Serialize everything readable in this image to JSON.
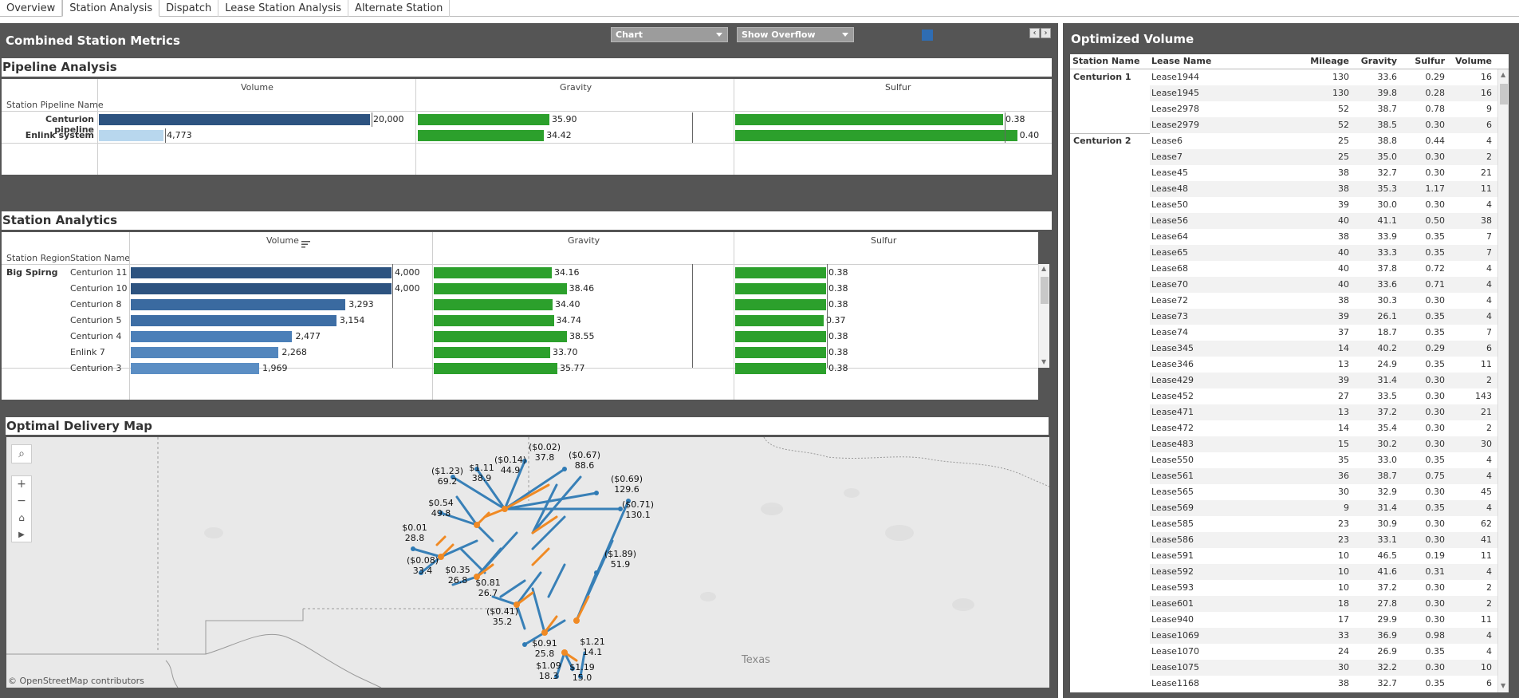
{
  "tabs": [
    {
      "label": "Overview"
    },
    {
      "label": "Station Analysis"
    },
    {
      "label": "Dispatch"
    },
    {
      "label": "Lease Station Analysis"
    },
    {
      "label": "Alternate Station"
    }
  ],
  "combined": {
    "title": "Combined Station Metrics",
    "dropdown1": "Chart",
    "dropdown2": "Show Overflow",
    "legend_color": "#2f6db3"
  },
  "pipeline": {
    "title": "Pipeline Analysis",
    "col_volume": "Volume",
    "col_gravity": "Gravity",
    "col_sulfur": "Sulfur",
    "row_header": "Station Pipeline Name",
    "rows": [
      {
        "name": "Centurion pipeline",
        "volume": 20000,
        "volume_label": "20,000",
        "gravity": 35.9,
        "gravity_label": "35.90",
        "sulfur": 0.38,
        "sulfur_label": "0.38",
        "color": "#2d5380"
      },
      {
        "name": "Enlink system",
        "volume": 4773,
        "volume_label": "4,773",
        "gravity": 34.42,
        "gravity_label": "34.42",
        "sulfur": 0.4,
        "sulfur_label": "0.40",
        "color": "#b8d7ee"
      }
    ]
  },
  "analytics": {
    "title": "Station Analytics",
    "col_volume": "Volume",
    "col_gravity": "Gravity",
    "col_sulfur": "Sulfur",
    "hdr_region": "Station Region",
    "hdr_name": "Station Name",
    "region": "Big Spirng",
    "rows": [
      {
        "name": "Centurion 11",
        "volume": 4000,
        "volume_label": "4,000",
        "gravity": 34.16,
        "gravity_label": "34.16",
        "sulfur": 0.38,
        "sulfur_label": "0.38",
        "color": "#2d5380"
      },
      {
        "name": "Centurion 10",
        "volume": 4000,
        "volume_label": "4,000",
        "gravity": 38.46,
        "gravity_label": "38.46",
        "sulfur": 0.38,
        "sulfur_label": "0.38",
        "color": "#2d5380"
      },
      {
        "name": "Centurion 8",
        "volume": 3293,
        "volume_label": "3,293",
        "gravity": 34.4,
        "gravity_label": "34.40",
        "sulfur": 0.38,
        "sulfur_label": "0.38",
        "color": "#3a6aa0"
      },
      {
        "name": "Centurion 5",
        "volume": 3154,
        "volume_label": "3,154",
        "gravity": 34.74,
        "gravity_label": "34.74",
        "sulfur": 0.37,
        "sulfur_label": "0.37",
        "color": "#3d6ea5"
      },
      {
        "name": "Centurion 4",
        "volume": 2477,
        "volume_label": "2,477",
        "gravity": 38.55,
        "gravity_label": "38.55",
        "sulfur": 0.38,
        "sulfur_label": "0.38",
        "color": "#4b7fb8"
      },
      {
        "name": "Enlink 7",
        "volume": 2268,
        "volume_label": "2,268",
        "gravity": 33.7,
        "gravity_label": "33.70",
        "sulfur": 0.38,
        "sulfur_label": "0.38",
        "color": "#5286bd"
      },
      {
        "name": "Centurion 3",
        "volume": 1969,
        "volume_label": "1,969",
        "gravity": 35.77,
        "gravity_label": "35.77",
        "sulfur": 0.38,
        "sulfur_label": "0.38",
        "color": "#5b8ec4"
      }
    ]
  },
  "map": {
    "title": "Optimal Delivery Map",
    "credit": "© OpenStreetMap contributors",
    "state_label": "Texas",
    "labels": [
      {
        "price": "($1.23)",
        "value": "69.2"
      },
      {
        "price": "$1.11",
        "value": "38.9"
      },
      {
        "price": "($0.14)",
        "value": "44.9"
      },
      {
        "price": "($0.02)",
        "value": "37.8"
      },
      {
        "price": "($0.67)",
        "value": "88.6"
      },
      {
        "price": "($0.69)",
        "value": "129.6"
      },
      {
        "price": "($0.71)",
        "value": "130.1"
      },
      {
        "price": "$0.54",
        "value": "49.8"
      },
      {
        "price": "$0.01",
        "value": "28.8"
      },
      {
        "price": "($0.08)",
        "value": "33.4"
      },
      {
        "price": "$0.35",
        "value": "26.8"
      },
      {
        "price": "$0.81",
        "value": "26.7"
      },
      {
        "price": "($1.89)",
        "value": "51.9"
      },
      {
        "price": "($0.41)",
        "value": "35.2"
      },
      {
        "price": "$0.91",
        "value": "25.8"
      },
      {
        "price": "$1.21",
        "value": "14.1"
      },
      {
        "price": "$1.09",
        "value": "18.3"
      },
      {
        "price": "$1.19",
        "value": "15.0"
      }
    ]
  },
  "optimized": {
    "title": "Optimized Volume",
    "headers": {
      "station": "Station Name",
      "lease": "Lease Name",
      "mileage": "Mileage",
      "gravity": "Gravity",
      "sulfur": "Sulfur",
      "volume": "Volume"
    },
    "groups": [
      {
        "station": "Centurion 1",
        "rows": [
          {
            "lease": "Lease1944",
            "mileage": "130",
            "gravity": "33.6",
            "sulfur": "0.29",
            "volume": "16"
          },
          {
            "lease": "Lease1945",
            "mileage": "130",
            "gravity": "39.8",
            "sulfur": "0.28",
            "volume": "16"
          },
          {
            "lease": "Lease2978",
            "mileage": "52",
            "gravity": "38.7",
            "sulfur": "0.78",
            "volume": "9"
          },
          {
            "lease": "Lease2979",
            "mileage": "52",
            "gravity": "38.5",
            "sulfur": "0.30",
            "volume": "6"
          }
        ]
      },
      {
        "station": "Centurion 2",
        "rows": [
          {
            "lease": "Lease6",
            "mileage": "25",
            "gravity": "38.8",
            "sulfur": "0.44",
            "volume": "4"
          },
          {
            "lease": "Lease7",
            "mileage": "25",
            "gravity": "35.0",
            "sulfur": "0.30",
            "volume": "2"
          },
          {
            "lease": "Lease45",
            "mileage": "38",
            "gravity": "32.7",
            "sulfur": "0.30",
            "volume": "21"
          },
          {
            "lease": "Lease48",
            "mileage": "38",
            "gravity": "35.3",
            "sulfur": "1.17",
            "volume": "11"
          },
          {
            "lease": "Lease50",
            "mileage": "39",
            "gravity": "30.0",
            "sulfur": "0.30",
            "volume": "4"
          },
          {
            "lease": "Lease56",
            "mileage": "40",
            "gravity": "41.1",
            "sulfur": "0.50",
            "volume": "38"
          },
          {
            "lease": "Lease64",
            "mileage": "38",
            "gravity": "33.9",
            "sulfur": "0.35",
            "volume": "7"
          },
          {
            "lease": "Lease65",
            "mileage": "40",
            "gravity": "33.3",
            "sulfur": "0.35",
            "volume": "7"
          },
          {
            "lease": "Lease68",
            "mileage": "40",
            "gravity": "37.8",
            "sulfur": "0.72",
            "volume": "4"
          },
          {
            "lease": "Lease70",
            "mileage": "40",
            "gravity": "33.6",
            "sulfur": "0.71",
            "volume": "4"
          },
          {
            "lease": "Lease72",
            "mileage": "38",
            "gravity": "30.3",
            "sulfur": "0.30",
            "volume": "4"
          },
          {
            "lease": "Lease73",
            "mileage": "39",
            "gravity": "26.1",
            "sulfur": "0.35",
            "volume": "4"
          },
          {
            "lease": "Lease74",
            "mileage": "37",
            "gravity": "18.7",
            "sulfur": "0.35",
            "volume": "7"
          },
          {
            "lease": "Lease345",
            "mileage": "14",
            "gravity": "40.2",
            "sulfur": "0.29",
            "volume": "6"
          },
          {
            "lease": "Lease346",
            "mileage": "13",
            "gravity": "24.9",
            "sulfur": "0.35",
            "volume": "11"
          },
          {
            "lease": "Lease429",
            "mileage": "39",
            "gravity": "31.4",
            "sulfur": "0.30",
            "volume": "2"
          },
          {
            "lease": "Lease452",
            "mileage": "27",
            "gravity": "33.5",
            "sulfur": "0.30",
            "volume": "143"
          },
          {
            "lease": "Lease471",
            "mileage": "13",
            "gravity": "37.2",
            "sulfur": "0.30",
            "volume": "21"
          },
          {
            "lease": "Lease472",
            "mileage": "14",
            "gravity": "35.4",
            "sulfur": "0.30",
            "volume": "2"
          },
          {
            "lease": "Lease483",
            "mileage": "15",
            "gravity": "30.2",
            "sulfur": "0.30",
            "volume": "30"
          },
          {
            "lease": "Lease550",
            "mileage": "35",
            "gravity": "33.0",
            "sulfur": "0.35",
            "volume": "4"
          },
          {
            "lease": "Lease561",
            "mileage": "36",
            "gravity": "38.7",
            "sulfur": "0.75",
            "volume": "4"
          },
          {
            "lease": "Lease565",
            "mileage": "30",
            "gravity": "32.9",
            "sulfur": "0.30",
            "volume": "45"
          },
          {
            "lease": "Lease569",
            "mileage": "9",
            "gravity": "31.4",
            "sulfur": "0.35",
            "volume": "4"
          },
          {
            "lease": "Lease585",
            "mileage": "23",
            "gravity": "30.9",
            "sulfur": "0.30",
            "volume": "62"
          },
          {
            "lease": "Lease586",
            "mileage": "23",
            "gravity": "33.1",
            "sulfur": "0.30",
            "volume": "41"
          },
          {
            "lease": "Lease591",
            "mileage": "10",
            "gravity": "46.5",
            "sulfur": "0.19",
            "volume": "11"
          },
          {
            "lease": "Lease592",
            "mileage": "10",
            "gravity": "41.6",
            "sulfur": "0.31",
            "volume": "4"
          },
          {
            "lease": "Lease593",
            "mileage": "10",
            "gravity": "37.2",
            "sulfur": "0.30",
            "volume": "2"
          },
          {
            "lease": "Lease601",
            "mileage": "18",
            "gravity": "27.8",
            "sulfur": "0.30",
            "volume": "2"
          },
          {
            "lease": "Lease940",
            "mileage": "17",
            "gravity": "29.9",
            "sulfur": "0.30",
            "volume": "11"
          },
          {
            "lease": "Lease1069",
            "mileage": "33",
            "gravity": "36.9",
            "sulfur": "0.98",
            "volume": "4"
          },
          {
            "lease": "Lease1070",
            "mileage": "24",
            "gravity": "26.9",
            "sulfur": "0.35",
            "volume": "4"
          },
          {
            "lease": "Lease1075",
            "mileage": "30",
            "gravity": "32.2",
            "sulfur": "0.30",
            "volume": "10"
          },
          {
            "lease": "Lease1168",
            "mileage": "38",
            "gravity": "32.7",
            "sulfur": "0.35",
            "volume": "6"
          }
        ]
      }
    ]
  }
}
